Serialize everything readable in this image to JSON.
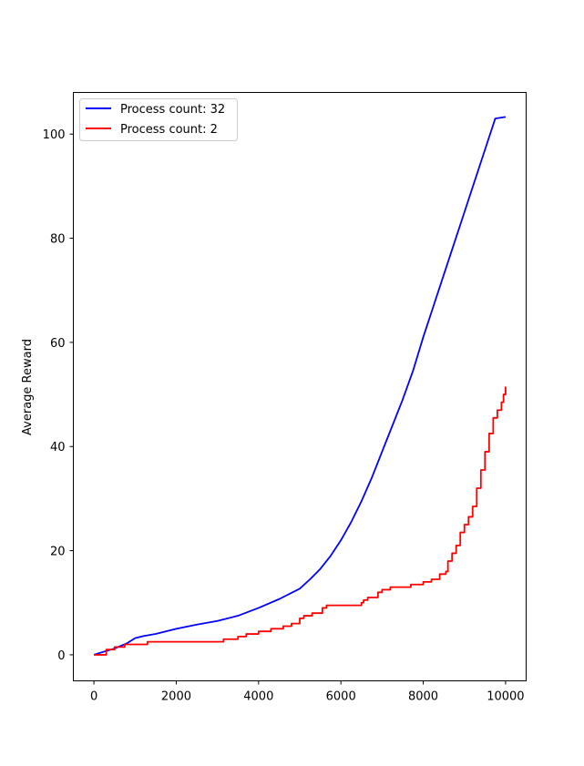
{
  "chart_data": {
    "type": "line",
    "title": "",
    "xlabel": "",
    "ylabel": "Average  Reward",
    "xlim": [
      -500,
      10500
    ],
    "ylim": [
      -5,
      108
    ],
    "x_ticks": [
      0,
      2000,
      4000,
      6000,
      8000,
      10000
    ],
    "y_ticks": [
      0,
      20,
      40,
      60,
      80,
      100
    ],
    "grid": false,
    "legend_position": "top-left",
    "series": [
      {
        "name": "Process count: 32",
        "color": "#0000ff",
        "step": false,
        "x": [
          0,
          200,
          500,
          800,
          1000,
          1200,
          1500,
          2000,
          2500,
          3000,
          3500,
          4000,
          4500,
          5000,
          5250,
          5500,
          5750,
          6000,
          6250,
          6500,
          6750,
          7000,
          7250,
          7500,
          7750,
          8000,
          8250,
          8500,
          8750,
          9000,
          9250,
          9500,
          9750,
          10000
        ],
        "y": [
          0,
          0.5,
          1.2,
          2.2,
          3.2,
          3.6,
          4.0,
          5.0,
          5.8,
          6.5,
          7.5,
          9.0,
          10.7,
          12.7,
          14.5,
          16.5,
          19.0,
          22.0,
          25.5,
          29.5,
          34.0,
          39.0,
          44.0,
          49.0,
          54.5,
          61.0,
          67.0,
          73.0,
          79.0,
          85.0,
          91.0,
          97.0,
          103.0,
          103.3
        ]
      },
      {
        "name": "Process count: 2",
        "color": "#ff0000",
        "step": true,
        "x": [
          0,
          300,
          500,
          750,
          1000,
          1300,
          3150,
          3500,
          3700,
          4000,
          4300,
          4600,
          4800,
          5000,
          5100,
          5300,
          5550,
          5650,
          6500,
          6550,
          6650,
          6900,
          7000,
          7200,
          7700,
          8000,
          8200,
          8400,
          8550,
          8600,
          8700,
          8800,
          8900,
          9000,
          9100,
          9200,
          9300,
          9400,
          9500,
          9600,
          9700,
          9800,
          9900,
          9950,
          10000
        ],
        "y": [
          0,
          1.0,
          1.5,
          2.0,
          2.0,
          2.5,
          3.0,
          3.5,
          4.0,
          4.5,
          5.0,
          5.5,
          6.0,
          7.0,
          7.5,
          8.0,
          9.0,
          9.5,
          10.0,
          10.5,
          11.0,
          12.0,
          12.5,
          13.0,
          13.5,
          14.0,
          14.5,
          15.5,
          16.0,
          18.0,
          19.5,
          21.0,
          23.5,
          25.0,
          26.5,
          28.5,
          32.0,
          35.5,
          39.0,
          42.5,
          45.5,
          47.0,
          48.5,
          50.0,
          51.5
        ]
      }
    ]
  }
}
